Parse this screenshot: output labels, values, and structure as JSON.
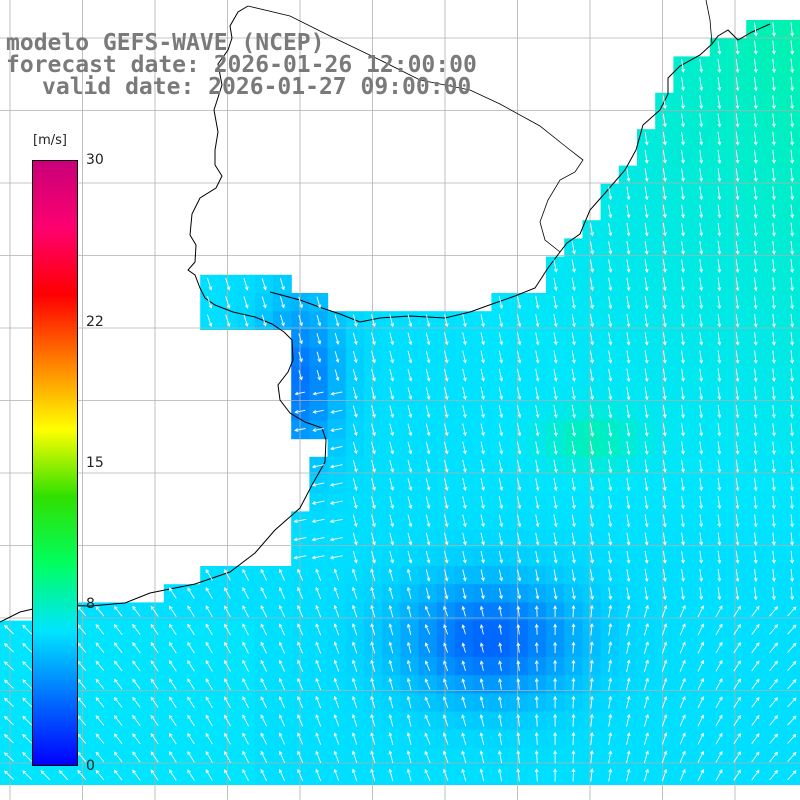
{
  "title": {
    "line1": "modelo GEFS-WAVE (NCEP)",
    "line2": "forecast date: 2026-01-26 12:00:00",
    "line3": "valid date: 2026-01-27 09:00:00"
  },
  "colorbar": {
    "unit": "[m/s]",
    "min": 0,
    "max": 30,
    "ticks": [
      {
        "value": 30,
        "label": "30"
      },
      {
        "value": 22,
        "label": "22"
      },
      {
        "value": 15,
        "label": "15"
      },
      {
        "value": 8,
        "label": "8"
      },
      {
        "value": 0,
        "label": "0"
      }
    ],
    "stops": [
      "#0000ff",
      "#0070ff",
      "#00e5ff",
      "#00ff60",
      "#30e000",
      "#ffff00",
      "#ff8000",
      "#ff0000",
      "#ff0070",
      "#c80078"
    ]
  },
  "colors": {
    "grid": "#b0b0b0",
    "coast": "#000000",
    "land": "#ffffff",
    "arrow": "#ffffff"
  }
}
